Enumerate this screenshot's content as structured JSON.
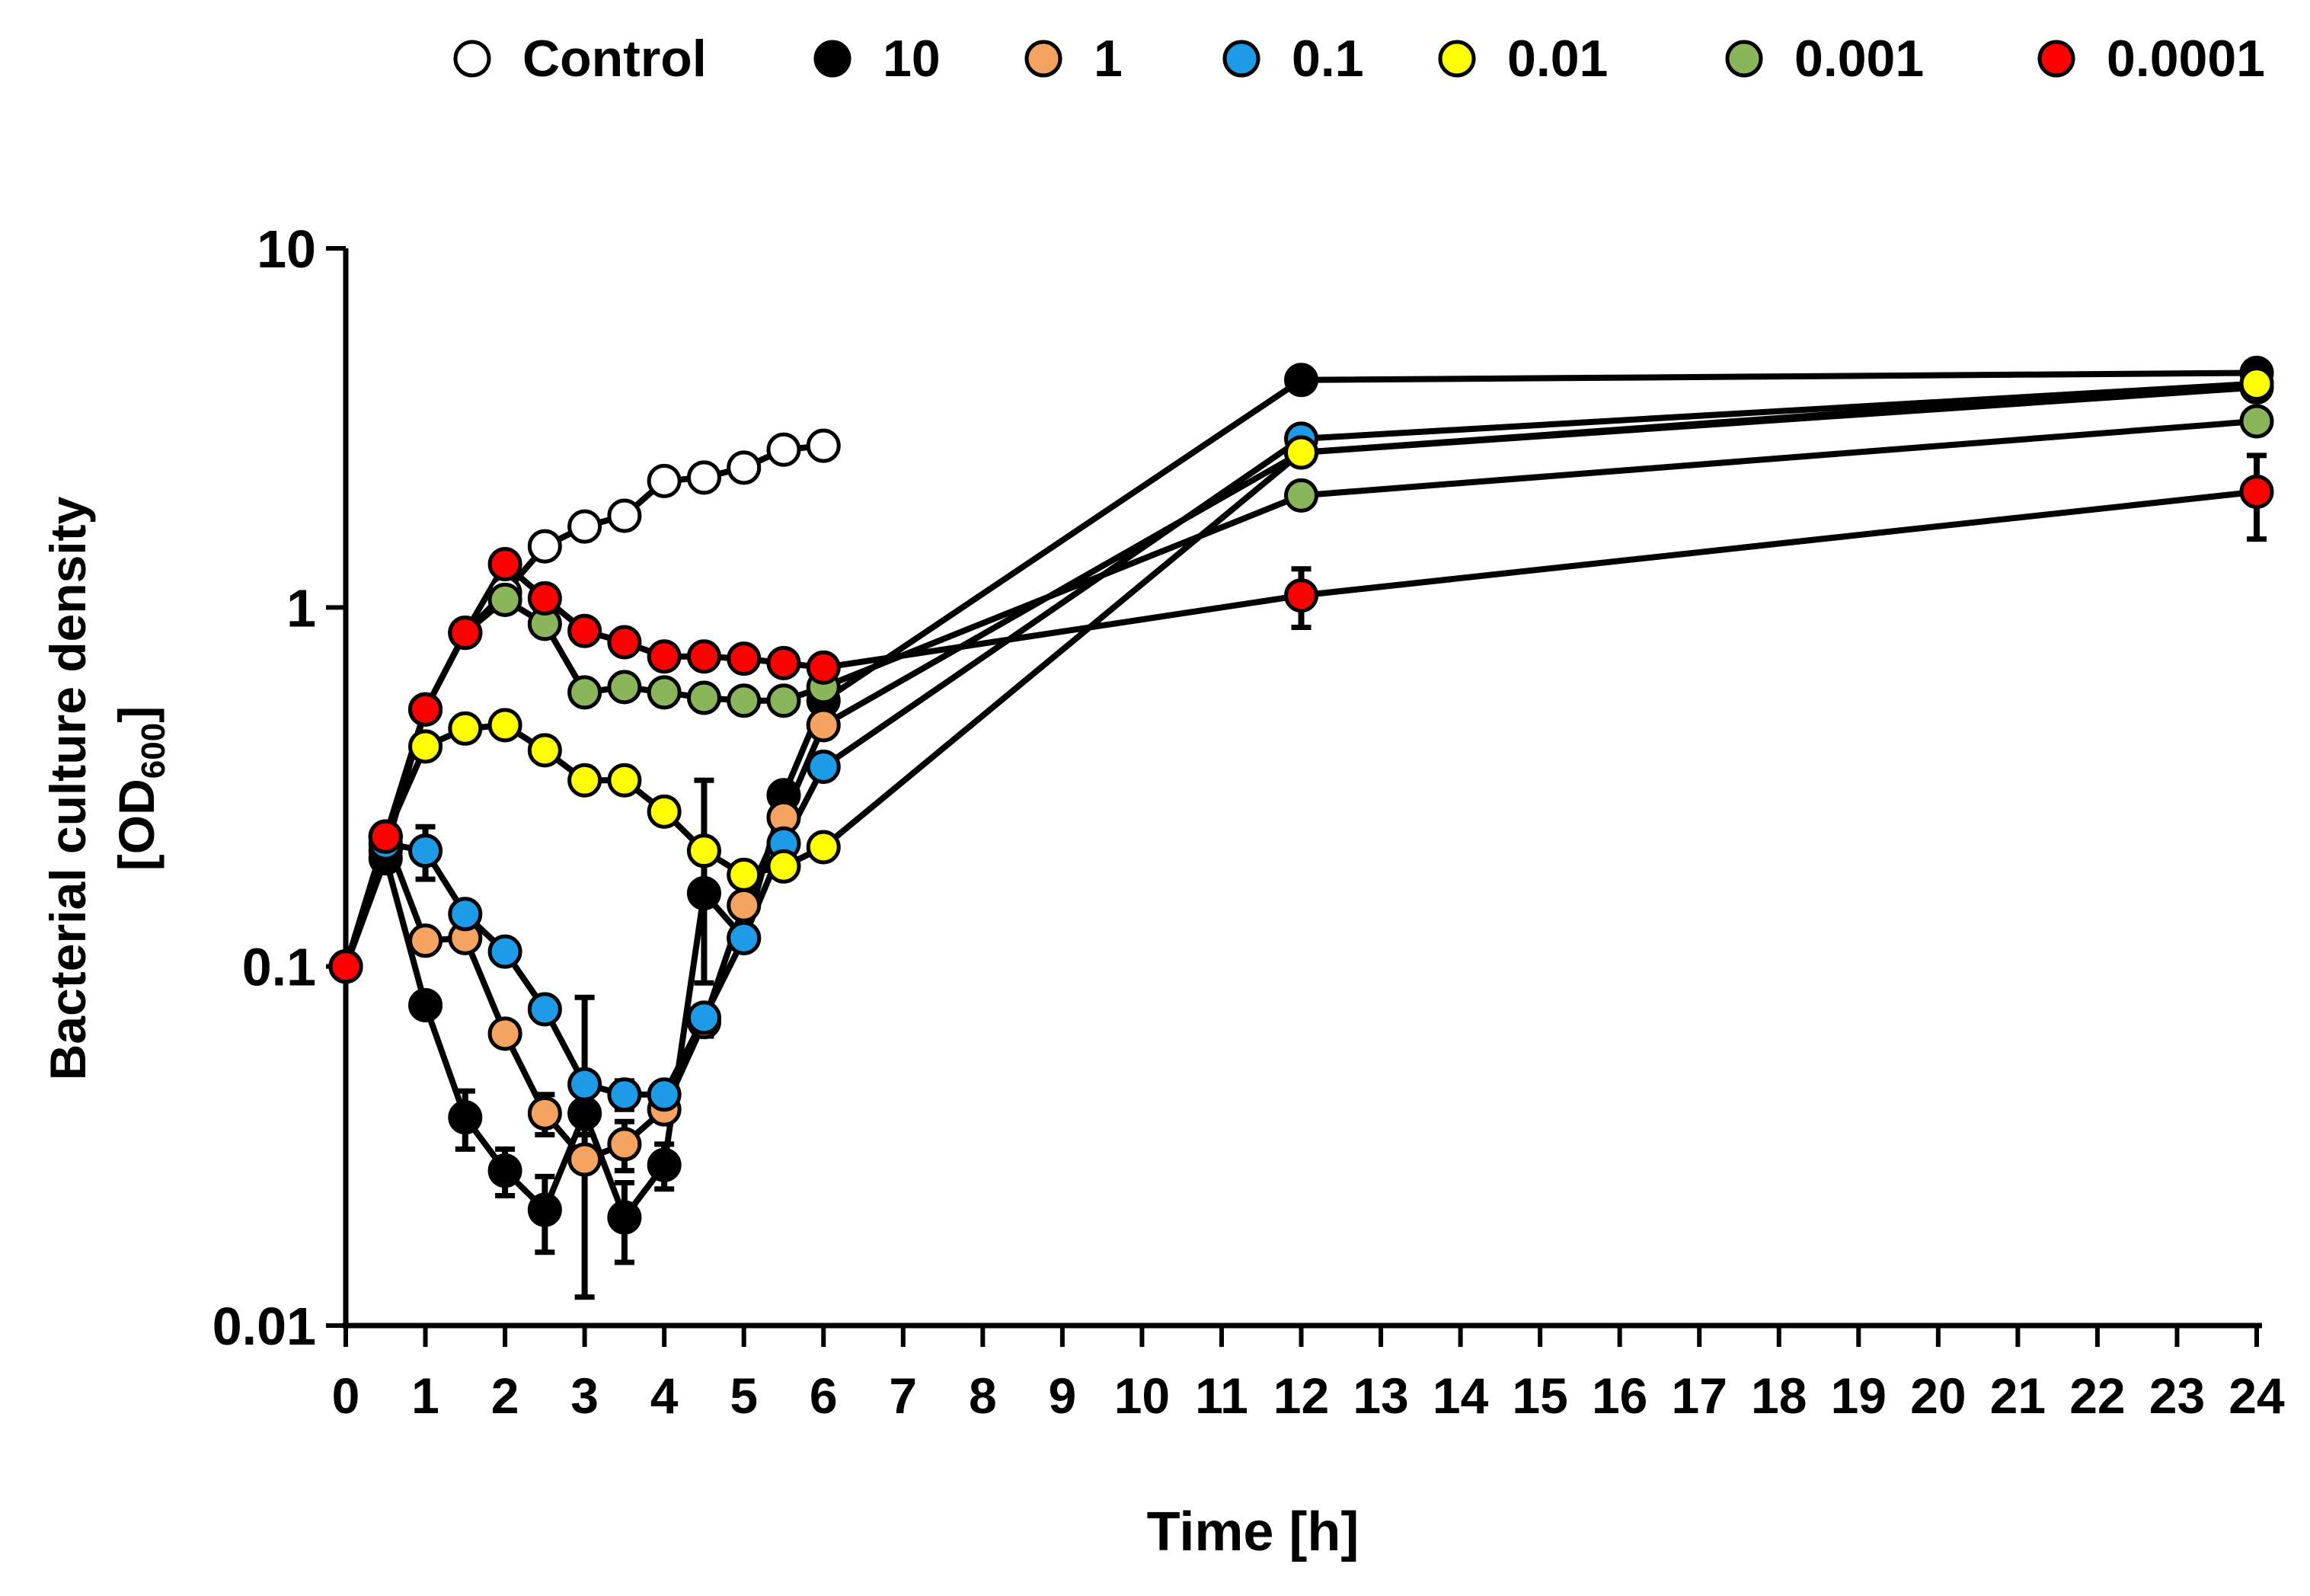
{
  "chart_data": {
    "type": "line",
    "title": "",
    "xlabel": "Time [h]",
    "ylabel": "Bacterial culture density",
    "ylabel_line2_prefix": "[OD",
    "ylabel_line2_sub": "600",
    "ylabel_line2_suffix": "]",
    "yscale": "log",
    "xlim": [
      0,
      24
    ],
    "ylim": [
      0.01,
      10
    ],
    "x_ticks": [
      0,
      1,
      2,
      3,
      4,
      5,
      6,
      7,
      8,
      9,
      10,
      11,
      12,
      13,
      14,
      15,
      16,
      17,
      18,
      19,
      20,
      21,
      22,
      23,
      24
    ],
    "x_tick_labels": [
      "0",
      "1",
      "2",
      "3",
      "4",
      "5",
      "6",
      "7",
      "8",
      "9",
      "10",
      "11",
      "12",
      "13",
      "14",
      "15",
      "16",
      "17",
      "18",
      "19",
      "20",
      "21",
      "22",
      "23",
      "24"
    ],
    "y_ticks": [
      0.01,
      0.1,
      1,
      10
    ],
    "y_tick_labels": [
      "0.01",
      "0.1",
      "1",
      "10"
    ],
    "legend_position": "top",
    "series": [
      {
        "name": "Control",
        "color": "#ffffff",
        "x": [
          0,
          0.5,
          1,
          1.5,
          2,
          2.5,
          3,
          3.5,
          4,
          4.5,
          5,
          5.5,
          6
        ],
        "values": [
          0.1,
          0.21,
          0.52,
          0.85,
          1.1,
          1.48,
          1.68,
          1.8,
          2.25,
          2.3,
          2.45,
          2.75,
          2.82
        ]
      },
      {
        "name": "10",
        "color": "#000000",
        "x": [
          0,
          0.5,
          1,
          1.5,
          2,
          2.5,
          3,
          3.5,
          4,
          4.5,
          5,
          5.5,
          6,
          12,
          24
        ],
        "values": [
          0.1,
          0.2,
          0.078,
          0.038,
          0.027,
          0.021,
          0.039,
          0.02,
          0.028,
          0.16,
          0.12,
          0.3,
          0.55,
          4.3,
          4.5
        ],
        "errors": [
          0,
          0,
          0,
          0.007,
          0.004,
          0.005,
          0.005,
          0.005,
          0.004,
          0,
          0,
          0,
          0,
          0,
          0
        ]
      },
      {
        "name": "1",
        "color": "#f4a460",
        "x": [
          0,
          0.5,
          1,
          1.5,
          2,
          2.5,
          3,
          3.5,
          4,
          4.5,
          5,
          5.5,
          6,
          12,
          24
        ],
        "values": [
          0.1,
          0.23,
          0.118,
          0.12,
          0.065,
          0.039,
          0.029,
          0.032,
          0.04,
          0.07,
          0.148,
          0.26,
          0.47,
          2.7,
          4.1
        ],
        "errors": [
          0,
          0,
          0,
          0,
          0,
          0.005,
          0,
          0.005,
          0,
          0.006,
          0,
          0,
          0,
          0,
          0
        ]
      },
      {
        "name": "0.1",
        "color": "#1e9be6",
        "x": [
          0,
          0.5,
          1,
          1.5,
          2,
          2.5,
          3,
          3.5,
          4,
          4.5,
          5,
          5.5,
          6,
          12,
          24
        ],
        "values": [
          0.1,
          0.22,
          0.21,
          0.14,
          0.11,
          0.076,
          0.047,
          0.044,
          0.044,
          0.072,
          0.12,
          0.22,
          0.36,
          2.95,
          4.2
        ],
        "errors": [
          0,
          0,
          0.035,
          0,
          0,
          0,
          0.035,
          0.004,
          0,
          0,
          0,
          0,
          0,
          0,
          0
        ]
      },
      {
        "name": "0.01",
        "color": "#ffff00",
        "x": [
          0,
          0.5,
          1,
          1.5,
          2,
          2.5,
          3,
          3.5,
          4,
          4.5,
          5,
          5.5,
          6,
          12,
          24
        ],
        "values": [
          0.1,
          0.23,
          0.41,
          0.46,
          0.47,
          0.4,
          0.33,
          0.33,
          0.27,
          0.21,
          0.18,
          0.19,
          0.215,
          2.7,
          4.2
        ],
        "errors": [
          0,
          0,
          0,
          0,
          0,
          0,
          0,
          0,
          0,
          0.12,
          0,
          0,
          0,
          0,
          0
        ]
      },
      {
        "name": "0.001",
        "color": "#8ab55a",
        "x": [
          0,
          0.5,
          1,
          1.5,
          2,
          2.5,
          3,
          3.5,
          4,
          4.5,
          5,
          5.5,
          6,
          12,
          24
        ],
        "values": [
          0.1,
          0.23,
          0.52,
          0.85,
          1.05,
          0.9,
          0.58,
          0.6,
          0.58,
          0.56,
          0.55,
          0.55,
          0.6,
          2.05,
          3.3
        ],
        "errors": [
          0,
          0,
          0,
          0,
          0,
          0,
          0,
          0,
          0,
          0,
          0,
          0,
          0,
          0,
          0
        ]
      },
      {
        "name": "0.0001",
        "color": "#ff0000",
        "x": [
          0,
          0.5,
          1,
          1.5,
          2,
          2.5,
          3,
          3.5,
          4,
          4.5,
          5,
          5.5,
          6,
          12,
          24
        ],
        "values": [
          0.1,
          0.23,
          0.52,
          0.85,
          1.32,
          1.06,
          0.86,
          0.8,
          0.73,
          0.73,
          0.72,
          0.7,
          0.68,
          1.08,
          2.1
        ],
        "errors": [
          0,
          0,
          0,
          0,
          0,
          0,
          0,
          0,
          0,
          0,
          0,
          0,
          0,
          0.2,
          0.55
        ]
      }
    ]
  }
}
